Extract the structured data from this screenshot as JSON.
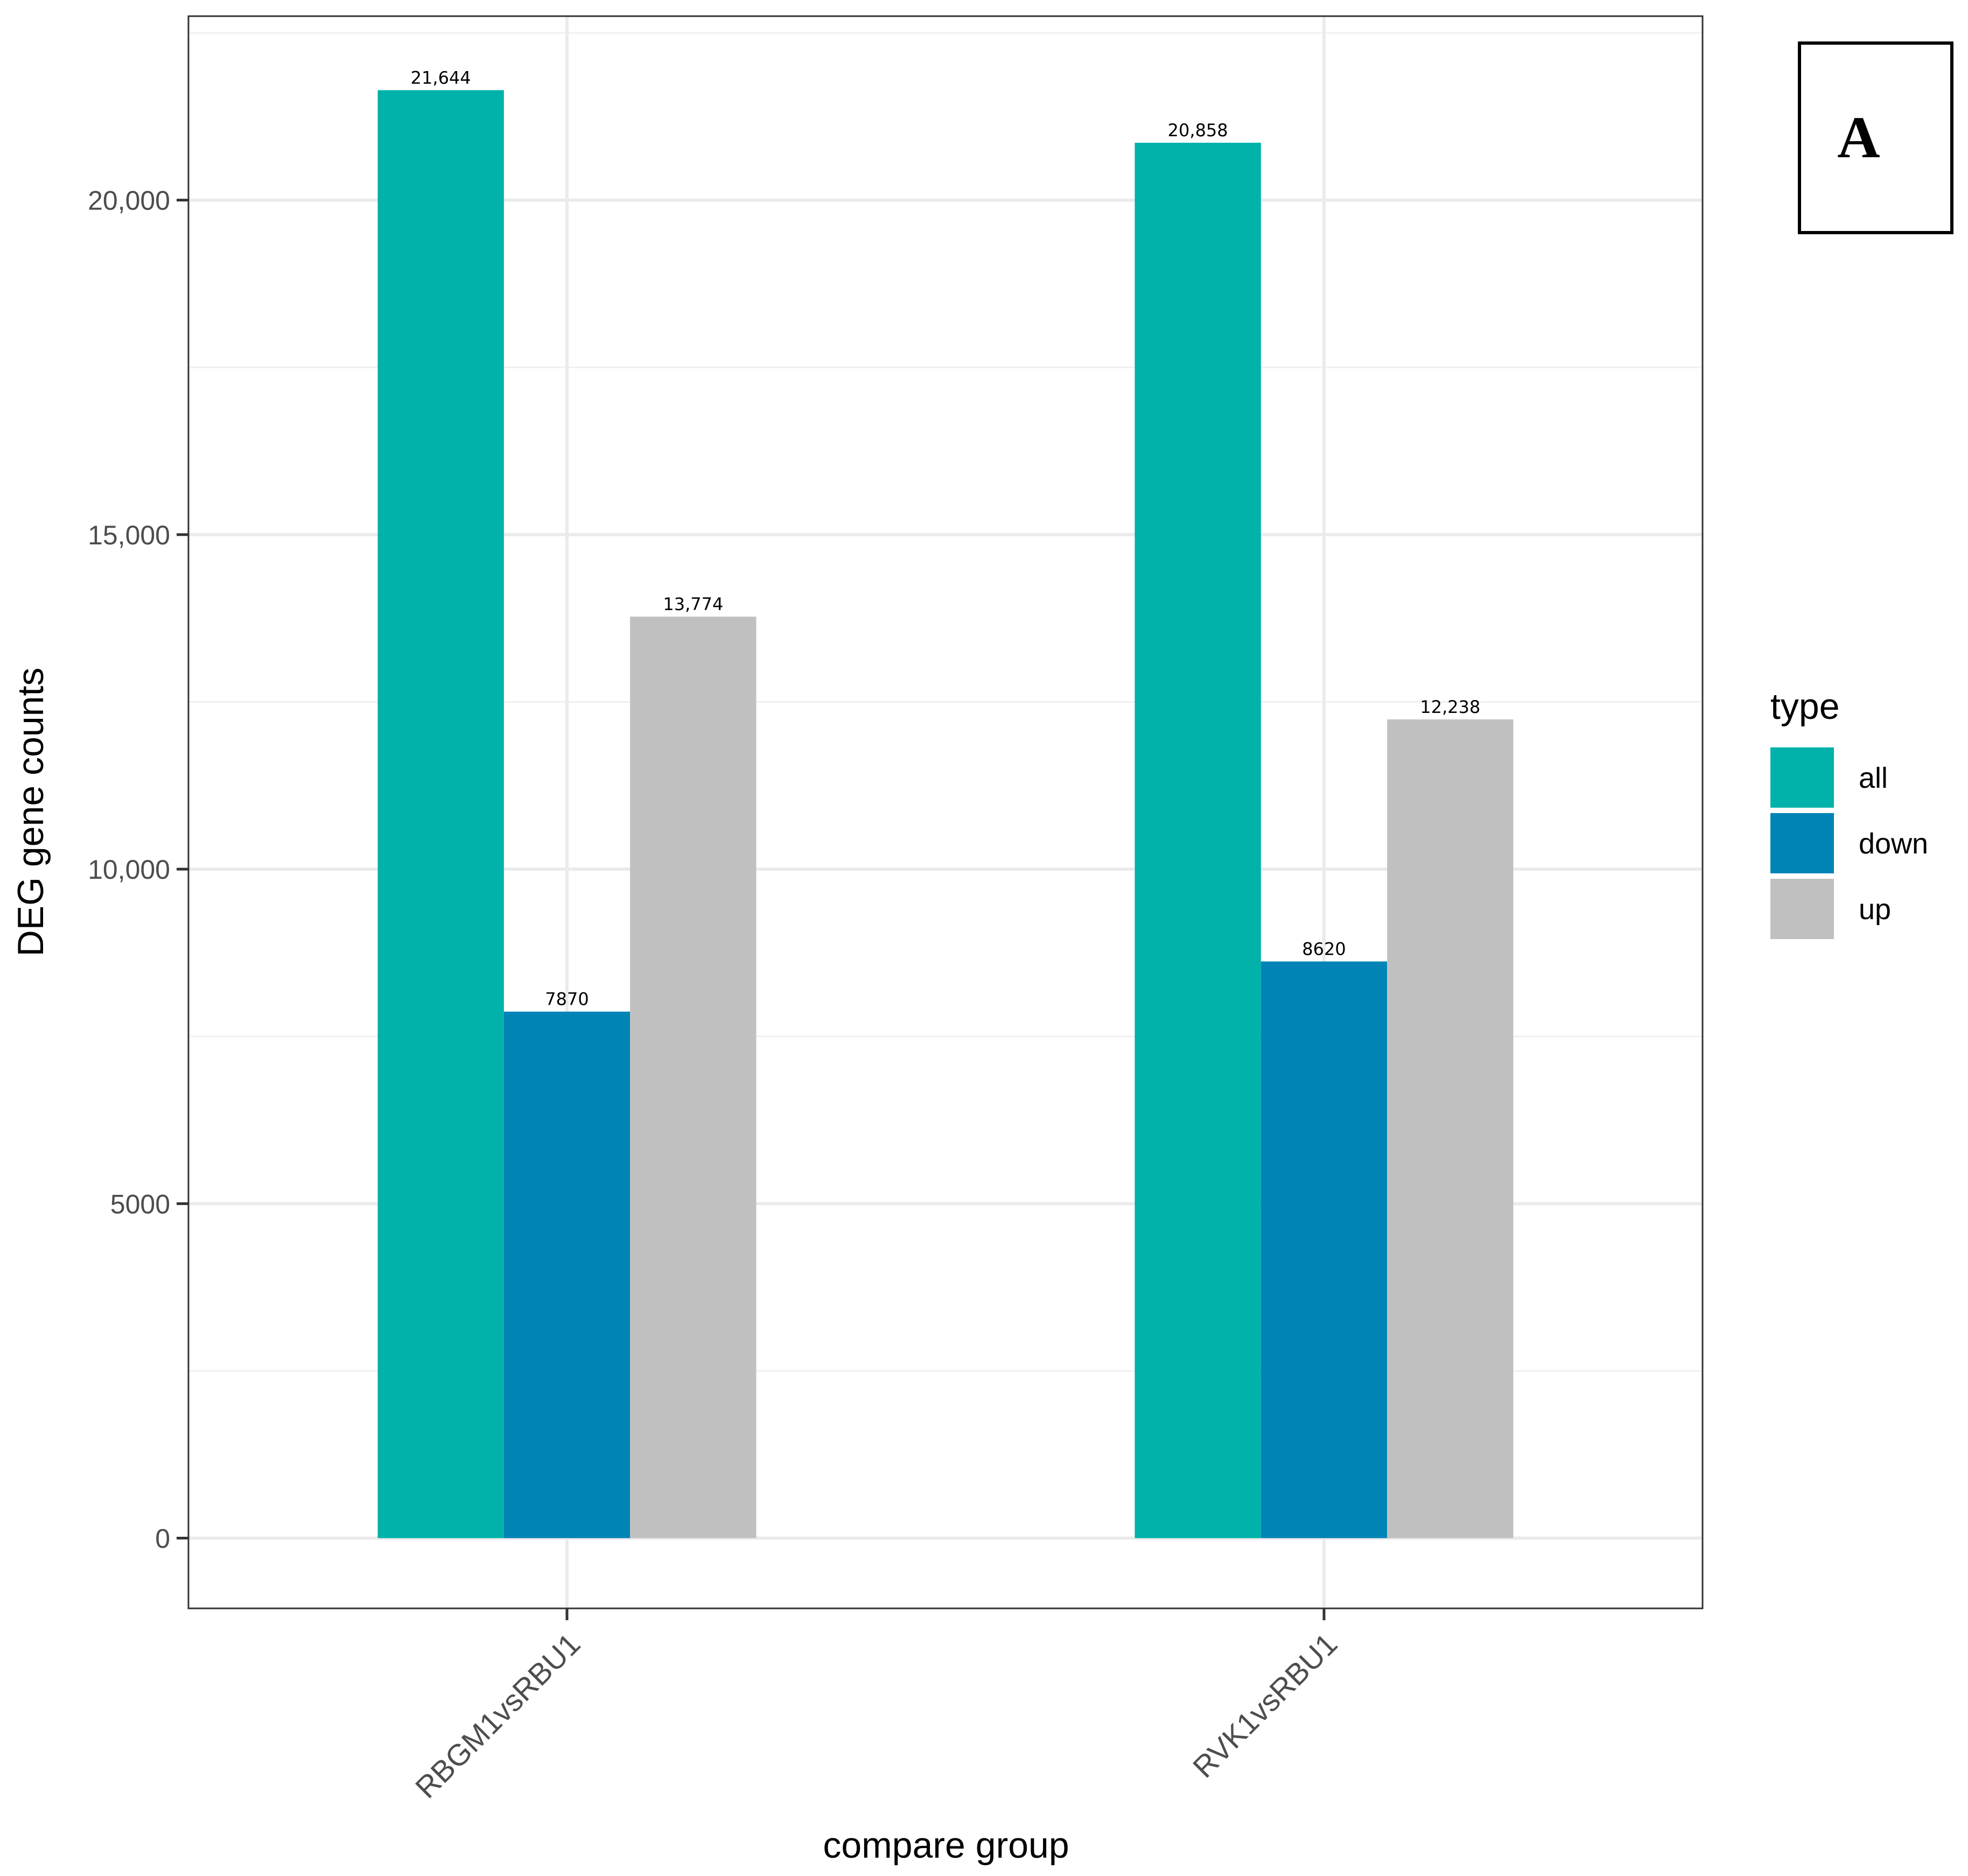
{
  "chart_data": {
    "type": "bar",
    "title": "",
    "xlabel": "compare group",
    "ylabel": "DEG gene counts",
    "categories": [
      "RBGM1vsRBU1",
      "RVK1vsRBU1"
    ],
    "series": [
      {
        "name": "all",
        "color": "#00B2AA",
        "values": [
          21644,
          20858
        ],
        "labels": [
          "21,644",
          "20,858"
        ]
      },
      {
        "name": "down",
        "color": "#0084B6",
        "values": [
          7870,
          8620
        ],
        "labels": [
          "7870",
          "8620"
        ]
      },
      {
        "name": "up",
        "color": "#C0C0C0",
        "values": [
          13774,
          12238
        ],
        "labels": [
          "13,774",
          "12,238"
        ]
      }
    ],
    "ylim": [
      -1050,
      22750
    ],
    "yticks": [
      0,
      5000,
      10000,
      15000,
      20000
    ],
    "ytick_labels": [
      "0",
      "5000",
      "10,000",
      "15,000",
      "20,000"
    ],
    "grid": true,
    "legend": {
      "title": "type",
      "position": "right",
      "entries": [
        "all",
        "down",
        "up"
      ]
    },
    "panel_label": "A"
  }
}
